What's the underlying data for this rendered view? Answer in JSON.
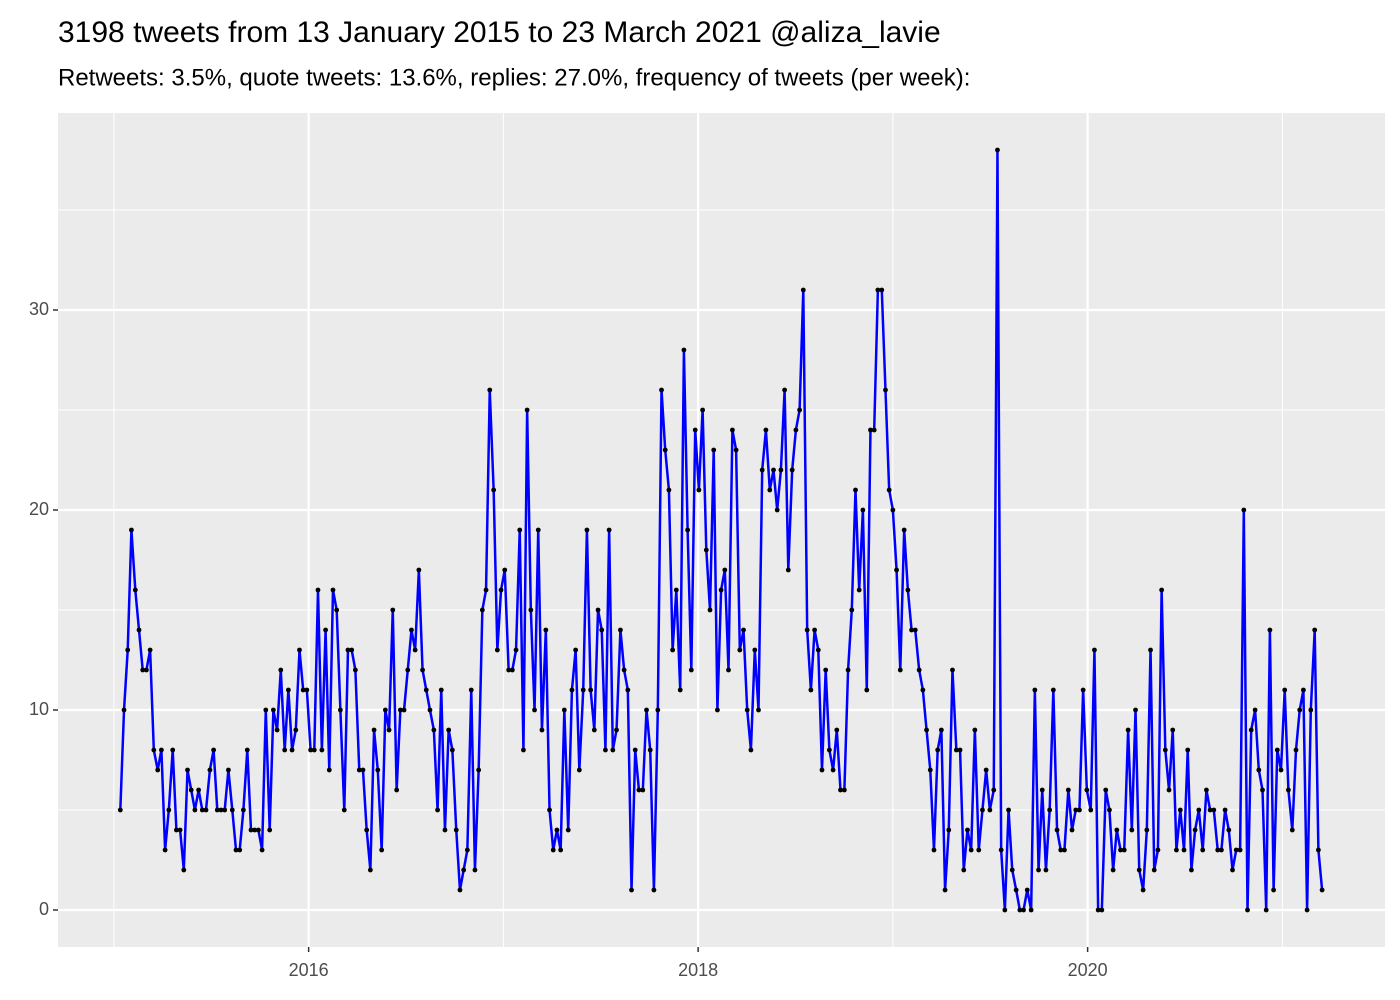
{
  "chart_data": {
    "type": "line",
    "title": "3198 tweets from 13 January 2015 to 23 March 2021 @aliza_lavie",
    "subtitle": "Retweets: 3.5%, quote tweets: 13.6%, replies: 27.0%, frequency of tweets (per week):",
    "color": "#0000ff",
    "marker_color": "#000000",
    "markers": true,
    "grid": true,
    "xlim": [
      2014.713,
      2021.527
    ],
    "xticks": [
      2016,
      2018,
      2020
    ],
    "ylim": [
      -1.85,
      39.85
    ],
    "yticks": [
      0,
      10,
      20,
      30
    ],
    "x": [
      2015.033,
      2015.052,
      2015.071,
      2015.09,
      2015.11,
      2015.129,
      2015.148,
      2015.167,
      2015.186,
      2015.205,
      2015.225,
      2015.244,
      2015.263,
      2015.282,
      2015.302,
      2015.321,
      2015.34,
      2015.359,
      2015.378,
      2015.397,
      2015.416,
      2015.435,
      2015.454,
      2015.473,
      2015.493,
      2015.512,
      2015.531,
      2015.55,
      2015.569,
      2015.588,
      2015.608,
      2015.627,
      2015.646,
      2015.665,
      2015.685,
      2015.704,
      2015.723,
      2015.742,
      2015.761,
      2015.78,
      2015.8,
      2015.819,
      2015.838,
      2015.857,
      2015.877,
      2015.896,
      2015.915,
      2015.934,
      2015.953,
      2015.972,
      2015.991,
      2016.01,
      2016.029,
      2016.048,
      2016.068,
      2016.087,
      2016.106,
      2016.125,
      2016.144,
      2016.163,
      2016.183,
      2016.202,
      2016.221,
      2016.24,
      2016.26,
      2016.279,
      2016.298,
      2016.317,
      2016.336,
      2016.355,
      2016.375,
      2016.394,
      2016.413,
      2016.432,
      2016.452,
      2016.471,
      2016.49,
      2016.509,
      2016.528,
      2016.547,
      2016.566,
      2016.585,
      2016.604,
      2016.623,
      2016.643,
      2016.662,
      2016.681,
      2016.7,
      2016.719,
      2016.738,
      2016.758,
      2016.777,
      2016.796,
      2016.815,
      2016.835,
      2016.854,
      2016.873,
      2016.892,
      2016.911,
      2016.93,
      2016.95,
      2016.969,
      2016.988,
      2017.007,
      2017.027,
      2017.046,
      2017.065,
      2017.084,
      2017.103,
      2017.122,
      2017.141,
      2017.16,
      2017.179,
      2017.198,
      2017.218,
      2017.237,
      2017.256,
      2017.275,
      2017.294,
      2017.313,
      2017.333,
      2017.352,
      2017.371,
      2017.39,
      2017.41,
      2017.429,
      2017.448,
      2017.467,
      2017.486,
      2017.505,
      2017.524,
      2017.543,
      2017.562,
      2017.581,
      2017.601,
      2017.62,
      2017.639,
      2017.658,
      2017.677,
      2017.696,
      2017.716,
      2017.735,
      2017.754,
      2017.773,
      2017.793,
      2017.812,
      2017.831,
      2017.85,
      2017.869,
      2017.888,
      2017.908,
      2017.927,
      2017.946,
      2017.965,
      2017.985,
      2018.004,
      2018.023,
      2018.042,
      2018.061,
      2018.08,
      2018.099,
      2018.118,
      2018.137,
      2018.156,
      2018.176,
      2018.195,
      2018.214,
      2018.233,
      2018.252,
      2018.271,
      2018.291,
      2018.31,
      2018.329,
      2018.348,
      2018.368,
      2018.387,
      2018.406,
      2018.425,
      2018.444,
      2018.463,
      2018.483,
      2018.502,
      2018.521,
      2018.54,
      2018.56,
      2018.579,
      2018.598,
      2018.617,
      2018.636,
      2018.655,
      2018.674,
      2018.693,
      2018.712,
      2018.731,
      2018.751,
      2018.77,
      2018.789,
      2018.808,
      2018.827,
      2018.846,
      2018.866,
      2018.885,
      2018.904,
      2018.923,
      2018.943,
      2018.962,
      2018.981,
      2019.0,
      2019.019,
      2019.038,
      2019.058,
      2019.077,
      2019.096,
      2019.115,
      2019.135,
      2019.154,
      2019.173,
      2019.192,
      2019.211,
      2019.23,
      2019.249,
      2019.268,
      2019.287,
      2019.306,
      2019.326,
      2019.345,
      2019.364,
      2019.383,
      2019.402,
      2019.421,
      2019.441,
      2019.46,
      2019.479,
      2019.498,
      2019.518,
      2019.537,
      2019.556,
      2019.575,
      2019.594,
      2019.613,
      2019.633,
      2019.652,
      2019.671,
      2019.69,
      2019.71,
      2019.729,
      2019.748,
      2019.767,
      2019.786,
      2019.805,
      2019.824,
      2019.843,
      2019.862,
      2019.881,
      2019.901,
      2019.92,
      2019.939,
      2019.958,
      2019.977,
      2019.996,
      2020.016,
      2020.035,
      2020.054,
      2020.073,
      2020.093,
      2020.112,
      2020.131,
      2020.15,
      2020.169,
      2020.188,
      2020.208,
      2020.227,
      2020.246,
      2020.265,
      2020.285,
      2020.304,
      2020.323,
      2020.342,
      2020.361,
      2020.38,
      2020.399,
      2020.418,
      2020.437,
      2020.456,
      2020.476,
      2020.495,
      2020.514,
      2020.533,
      2020.552,
      2020.571,
      2020.591,
      2020.61,
      2020.629,
      2020.648,
      2020.668,
      2020.687,
      2020.706,
      2020.725,
      2020.744,
      2020.763,
      2020.783,
      2020.802,
      2020.821,
      2020.84,
      2020.86,
      2020.879,
      2020.898,
      2020.917,
      2020.936,
      2020.955,
      2020.974,
      2020.993,
      2021.012,
      2021.031,
      2021.051,
      2021.07,
      2021.089,
      2021.108,
      2021.127,
      2021.146,
      2021.166,
      2021.185,
      2021.204
    ],
    "values": [
      5,
      10,
      13,
      19,
      16,
      14,
      12,
      12,
      13,
      8,
      7,
      8,
      3,
      5,
      8,
      4,
      4,
      2,
      7,
      6,
      5,
      6,
      5,
      5,
      7,
      8,
      5,
      5,
      5,
      7,
      5,
      3,
      3,
      5,
      8,
      4,
      4,
      4,
      3,
      10,
      4,
      10,
      9,
      12,
      8,
      11,
      8,
      9,
      13,
      11,
      11,
      8,
      8,
      16,
      8,
      14,
      7,
      16,
      15,
      10,
      5,
      13,
      13,
      12,
      7,
      7,
      4,
      2,
      9,
      7,
      3,
      10,
      9,
      15,
      6,
      10,
      10,
      12,
      14,
      13,
      17,
      12,
      11,
      10,
      9,
      5,
      11,
      4,
      9,
      8,
      4,
      1,
      2,
      3,
      11,
      2,
      7,
      15,
      16,
      26,
      21,
      13,
      16,
      17,
      12,
      12,
      13,
      19,
      8,
      25,
      15,
      10,
      19,
      9,
      14,
      5,
      3,
      4,
      3,
      10,
      4,
      11,
      13,
      7,
      11,
      19,
      11,
      9,
      15,
      14,
      8,
      19,
      8,
      9,
      14,
      12,
      11,
      1,
      8,
      6,
      6,
      10,
      8,
      1,
      10,
      26,
      23,
      21,
      13,
      16,
      11,
      28,
      19,
      12,
      24,
      21,
      25,
      18,
      15,
      23,
      10,
      16,
      17,
      12,
      24,
      23,
      13,
      14,
      10,
      8,
      13,
      10,
      22,
      24,
      21,
      22,
      20,
      22,
      26,
      17,
      22,
      24,
      25,
      31,
      14,
      11,
      14,
      13,
      7,
      12,
      8,
      7,
      9,
      6,
      6,
      12,
      15,
      21,
      16,
      20,
      11,
      24,
      24,
      31,
      31,
      26,
      21,
      20,
      17,
      12,
      19,
      16,
      14,
      14,
      12,
      11,
      9,
      7,
      3,
      8,
      9,
      1,
      4,
      12,
      8,
      8,
      2,
      4,
      3,
      9,
      3,
      5,
      7,
      5,
      6,
      38,
      3,
      0,
      5,
      2,
      1,
      0,
      0,
      1,
      0,
      11,
      2,
      6,
      2,
      5,
      11,
      4,
      3,
      3,
      6,
      4,
      5,
      5,
      11,
      6,
      5,
      13,
      0,
      0,
      6,
      5,
      2,
      4,
      3,
      3,
      9,
      4,
      10,
      2,
      1,
      4,
      13,
      2,
      3,
      16,
      8,
      6,
      9,
      3,
      5,
      3,
      8,
      2,
      4,
      5,
      3,
      6,
      5,
      5,
      3,
      3,
      5,
      4,
      2,
      3,
      3,
      20,
      0,
      9,
      10,
      7,
      6,
      0,
      14,
      1,
      8,
      7,
      11,
      6,
      4,
      8,
      10,
      11,
      0,
      10,
      14,
      3,
      1
    ]
  }
}
